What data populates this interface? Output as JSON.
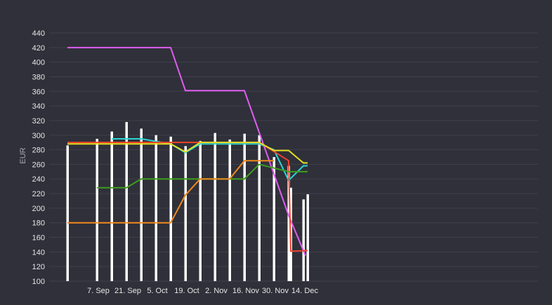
{
  "chart_data": {
    "type": "line",
    "title": "",
    "ylabel": "EUR",
    "xlabel": "",
    "ylim": [
      100,
      440
    ],
    "yticks": [
      100,
      120,
      140,
      160,
      180,
      200,
      220,
      240,
      260,
      280,
      300,
      320,
      340,
      360,
      380,
      400,
      420,
      440
    ],
    "xlim": [
      0,
      108
    ],
    "xticks": [
      {
        "label": "7. Sep",
        "x": 7
      },
      {
        "label": "21. Sep",
        "x": 21
      },
      {
        "label": "5. Oct",
        "x": 35
      },
      {
        "label": "19. Oct",
        "x": 49
      },
      {
        "label": "2. Nov",
        "x": 63
      },
      {
        "label": "16. Nov",
        "x": 77
      },
      {
        "label": "30. Nov",
        "x": 91
      },
      {
        "label": "14. Dec",
        "x": 105
      }
    ],
    "grid": true,
    "bars": {
      "name": "bars",
      "color": "#ffffff",
      "x": [
        0,
        14,
        21,
        28,
        35,
        42,
        49,
        56,
        63,
        70,
        77,
        84,
        91,
        98,
        105,
        106,
        112,
        114
      ],
      "values": [
        286,
        295,
        305,
        318,
        309,
        300,
        298,
        285,
        292,
        303,
        294,
        302,
        300,
        270,
        258,
        228,
        212,
        219
      ]
    },
    "series": [
      {
        "name": "magenta",
        "color": "#e15cf2",
        "x": [
          0,
          49,
          56,
          84,
          105,
          113
        ],
        "values": [
          420,
          420,
          361,
          361,
          190,
          135
        ]
      },
      {
        "name": "cyan",
        "color": "#2ad5d5",
        "x": [
          21,
          35,
          49,
          56,
          63,
          91,
          98,
          105,
          112,
          114
        ],
        "values": [
          295,
          295,
          288,
          276,
          288,
          288,
          280,
          238,
          258,
          258
        ]
      },
      {
        "name": "red",
        "color": "#f2402a",
        "x": [
          0,
          91,
          105,
          106,
          114
        ],
        "values": [
          290,
          290,
          265,
          141,
          142
        ]
      },
      {
        "name": "yellow",
        "color": "#e6e021",
        "x": [
          0,
          49,
          56,
          63,
          91,
          98,
          105,
          112,
          114
        ],
        "values": [
          288,
          288,
          277,
          290,
          290,
          279,
          279,
          262,
          262
        ]
      },
      {
        "name": "green",
        "color": "#3e9e1d",
        "x": [
          14,
          28,
          35,
          84,
          91,
          105,
          114
        ],
        "values": [
          228,
          228,
          240,
          240,
          260,
          250,
          250
        ]
      },
      {
        "name": "orange",
        "color": "#f1891e",
        "x": [
          0,
          49,
          56,
          63,
          77,
          84,
          98
        ],
        "values": [
          180,
          180,
          218,
          240,
          240,
          265,
          265
        ]
      }
    ]
  }
}
